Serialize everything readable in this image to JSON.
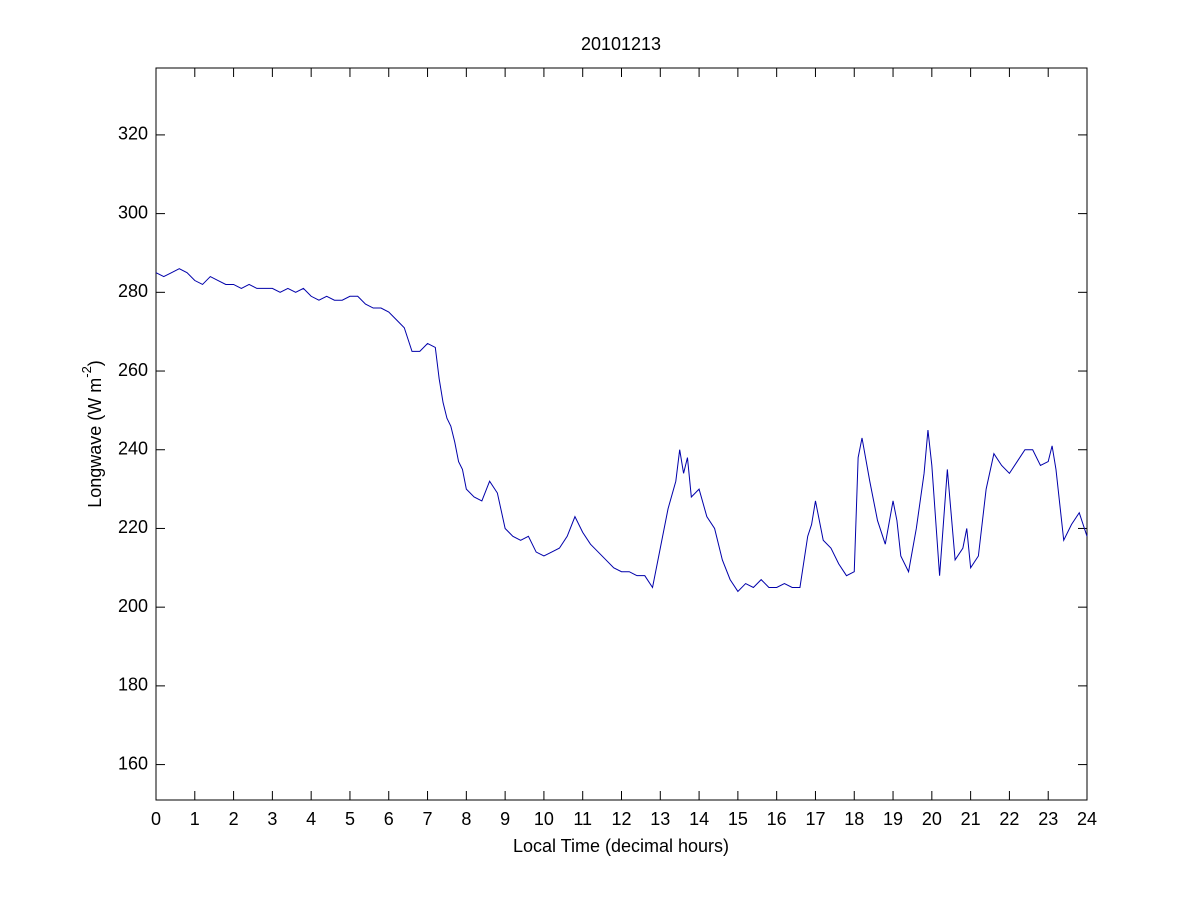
{
  "chart_data": {
    "type": "line",
    "title": "20101213",
    "xlabel": "Local Time (decimal hours)",
    "ylabel": {
      "text": "Longwave (W m",
      "superscript": "-2",
      "suffix": ")"
    },
    "xlim": [
      0,
      24
    ],
    "xticks": [
      0,
      1,
      2,
      3,
      4,
      5,
      6,
      7,
      8,
      9,
      10,
      11,
      12,
      13,
      14,
      15,
      16,
      17,
      18,
      19,
      20,
      21,
      22,
      23,
      24
    ],
    "ylim": [
      151,
      337
    ],
    "yticks": [
      160,
      180,
      200,
      220,
      240,
      260,
      280,
      300,
      320
    ],
    "series": [
      {
        "name": "Longwave",
        "color": "#0000aa",
        "x": [
          0,
          0.2,
          0.4,
          0.6,
          0.8,
          1,
          1.2,
          1.4,
          1.6,
          1.8,
          2,
          2.2,
          2.4,
          2.6,
          2.8,
          3,
          3.2,
          3.4,
          3.6,
          3.8,
          4,
          4.2,
          4.4,
          4.6,
          4.8,
          5,
          5.2,
          5.4,
          5.6,
          5.8,
          6,
          6.2,
          6.4,
          6.6,
          6.8,
          7,
          7.2,
          7.3,
          7.4,
          7.5,
          7.6,
          7.7,
          7.8,
          7.9,
          8,
          8.2,
          8.4,
          8.6,
          8.8,
          9,
          9.2,
          9.4,
          9.6,
          9.8,
          10,
          10.2,
          10.4,
          10.6,
          10.8,
          11,
          11.2,
          11.4,
          11.6,
          11.8,
          12,
          12.2,
          12.4,
          12.6,
          12.8,
          13,
          13.2,
          13.4,
          13.5,
          13.6,
          13.7,
          13.8,
          14,
          14.2,
          14.4,
          14.6,
          14.8,
          15,
          15.2,
          15.4,
          15.6,
          15.8,
          16,
          16.2,
          16.4,
          16.6,
          16.8,
          16.9,
          17,
          17.2,
          17.4,
          17.6,
          17.8,
          18,
          18.1,
          18.2,
          18.4,
          18.6,
          18.8,
          19,
          19.1,
          19.2,
          19.4,
          19.6,
          19.8,
          19.9,
          20,
          20.2,
          20.4,
          20.6,
          20.8,
          20.9,
          21,
          21.2,
          21.4,
          21.6,
          21.8,
          22,
          22.2,
          22.4,
          22.6,
          22.8,
          23,
          23.1,
          23.2,
          23.4,
          23.6,
          23.8,
          24
        ],
        "values": [
          285,
          284,
          285,
          286,
          285,
          283,
          282,
          284,
          283,
          282,
          282,
          281,
          282,
          281,
          281,
          281,
          280,
          281,
          280,
          281,
          279,
          278,
          279,
          278,
          278,
          279,
          279,
          277,
          276,
          276,
          275,
          273,
          271,
          265,
          265,
          267,
          266,
          258,
          252,
          248,
          246,
          242,
          237,
          235,
          230,
          228,
          227,
          232,
          229,
          220,
          218,
          217,
          218,
          214,
          213,
          214,
          215,
          218,
          223,
          219,
          216,
          214,
          212,
          210,
          209,
          209,
          208,
          208,
          205,
          215,
          225,
          232,
          240,
          234,
          238,
          228,
          230,
          223,
          220,
          212,
          207,
          204,
          206,
          205,
          207,
          205,
          205,
          206,
          205,
          205,
          218,
          221,
          227,
          217,
          215,
          211,
          208,
          209,
          238,
          243,
          232,
          222,
          216,
          227,
          222,
          213,
          209,
          220,
          234,
          245,
          236,
          208,
          235,
          212,
          215,
          220,
          210,
          213,
          230,
          239,
          236,
          234,
          237,
          240,
          240,
          236,
          237,
          241,
          235,
          217,
          221,
          224,
          218
        ]
      }
    ]
  }
}
